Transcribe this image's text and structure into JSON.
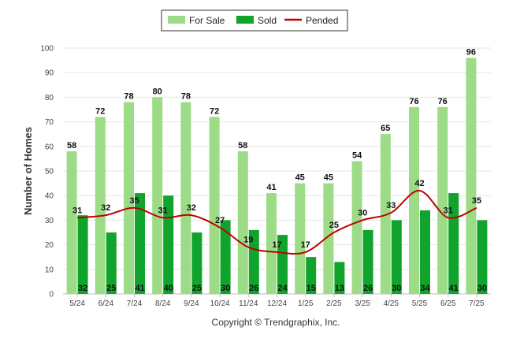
{
  "chart_data": {
    "type": "bar",
    "categories": [
      "5/24",
      "6/24",
      "7/24",
      "8/24",
      "9/24",
      "10/24",
      "11/24",
      "12/24",
      "1/25",
      "2/25",
      "3/25",
      "4/25",
      "5/25",
      "6/25",
      "7/25"
    ],
    "series": [
      {
        "name": "For Sale",
        "type": "bar",
        "color": "#9ddc86",
        "values": [
          58,
          72,
          78,
          80,
          78,
          72,
          58,
          41,
          45,
          45,
          54,
          65,
          76,
          76,
          96
        ]
      },
      {
        "name": "Sold",
        "type": "bar",
        "color": "#10a42c",
        "values": [
          32,
          25,
          41,
          40,
          25,
          30,
          26,
          24,
          15,
          13,
          26,
          30,
          34,
          41,
          30
        ]
      },
      {
        "name": "Pended",
        "type": "line",
        "color": "#c00000",
        "values": [
          31,
          32,
          35,
          31,
          32,
          27,
          19,
          17,
          17,
          25,
          30,
          33,
          42,
          31,
          35
        ]
      }
    ],
    "ylabel": "Number of Homes",
    "ylim": [
      0,
      100
    ],
    "yticks": [
      0,
      10,
      20,
      30,
      40,
      50,
      60,
      70,
      80,
      90,
      100
    ],
    "grid": true,
    "legend": "top-center",
    "credit": "Copyright © Trendgraphix, Inc."
  }
}
